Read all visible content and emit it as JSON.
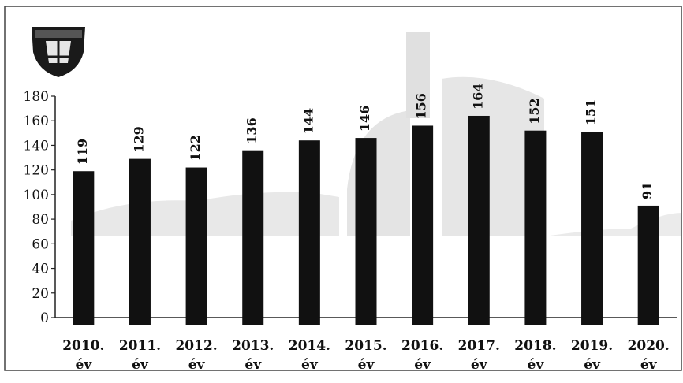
{
  "logo": {
    "icon": "emblem-icon",
    "top_text": "",
    "bottom_text": ""
  },
  "chart_data": {
    "type": "bar",
    "categories": [
      "2010.",
      "2011.",
      "2012.",
      "2013.",
      "2014.",
      "2015.",
      "2016.",
      "2017.",
      "2018.",
      "2019.",
      "2020."
    ],
    "category_suffix": "év",
    "values": [
      119,
      129,
      122,
      136,
      144,
      146,
      156,
      164,
      152,
      151,
      91
    ],
    "ylim": [
      0,
      180
    ],
    "yticks": [
      0,
      20,
      40,
      60,
      80,
      100,
      120,
      140,
      160,
      180
    ],
    "grid": false,
    "legend": "none",
    "bar_color": "#111111",
    "background_image": "building-photo-watermark"
  }
}
